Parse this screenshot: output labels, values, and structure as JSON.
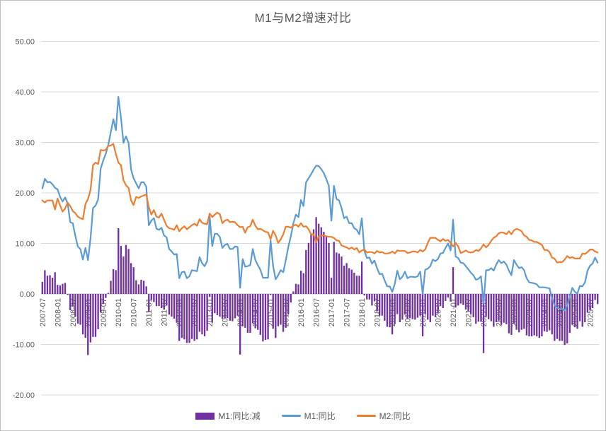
{
  "title": "M1与M2增速对比",
  "colors": {
    "bar_purple": "#7030A0",
    "line_m1_blue": "#5B9BD5",
    "line_m2_orange": "#ED7D31",
    "gridline": "#D9D9D9",
    "zero_axis": "#BFBFBF",
    "text_gray": "#595959",
    "background": "#FFFFFF"
  },
  "legend": [
    {
      "label": "M1:同比:减",
      "color": "#7030A0",
      "type": "bar"
    },
    {
      "label": "M1:同比",
      "color": "#5B9BD5",
      "type": "line"
    },
    {
      "label": "M2:同比",
      "color": "#ED7D31",
      "type": "line"
    }
  ],
  "chart_data": {
    "type": "combo_bar_line",
    "title": "M1与M2增速对比",
    "xlabel": "",
    "ylabel": "",
    "ylim": [
      -20,
      50
    ],
    "grid": "horizontal",
    "legend_position": "bottom-center",
    "x_frequency": "monthly",
    "x_start": "2007-07",
    "x_end": "2025-10",
    "x_tick_every_months": 6,
    "x_tick_labels": [
      "2007-07",
      "2008-01",
      "2008-07",
      "2009-01",
      "2009-07",
      "2010-01",
      "2010-07",
      "2011-01",
      "2011-07",
      "2012-01",
      "2012-07",
      "2013-01",
      "2013-07",
      "2014-01",
      "2014-07",
      "2015-01",
      "2015-07",
      "2016-01",
      "2016-07",
      "2017-01",
      "2017-07",
      "2018-01",
      "2018-07",
      "2019-01",
      "2019-07",
      "2020-01",
      "2020-07",
      "2021-01",
      "2021-07",
      "2022-01",
      "2022-07",
      "2023-01",
      "2023-07",
      "2024-01",
      "2024-07",
      "2025-01",
      "2025-07"
    ],
    "y_tick_labels": [
      "50.00",
      "40.00",
      "30.00",
      "20.00",
      "10.00",
      "0.00",
      "-10.00",
      "-20.00"
    ],
    "series": [
      {
        "name": "M1:同比",
        "type": "line",
        "color": "#5B9BD5",
        "values": [
          20.9,
          22.8,
          22.1,
          22.2,
          21.7,
          21.0,
          20.7,
          19.2,
          18.3,
          19.1,
          17.9,
          14.2,
          14.0,
          11.5,
          9.4,
          8.9,
          6.8,
          9.1,
          6.7,
          10.9,
          17.0,
          17.5,
          18.7,
          24.8,
          26.4,
          27.7,
          29.5,
          32.0,
          34.6,
          32.4,
          39.0,
          35.0,
          29.9,
          31.2,
          29.9,
          24.6,
          22.9,
          21.9,
          20.9,
          22.1,
          22.1,
          21.2,
          13.6,
          14.5,
          15.0,
          12.9,
          12.7,
          13.1,
          11.6,
          11.2,
          8.9,
          8.4,
          7.8,
          7.9,
          3.1,
          4.3,
          4.4,
          3.1,
          3.5,
          4.7,
          4.6,
          4.5,
          7.3,
          6.1,
          5.5,
          6.5,
          15.3,
          9.5,
          11.9,
          11.9,
          11.3,
          9.1,
          9.7,
          9.9,
          8.9,
          8.9,
          9.4,
          9.3,
          1.2,
          6.9,
          5.4,
          5.5,
          5.7,
          8.9,
          6.7,
          5.7,
          4.8,
          3.2,
          3.2,
          3.2,
          10.6,
          5.6,
          2.9,
          3.7,
          4.7,
          4.3,
          6.6,
          9.3,
          11.4,
          14.0,
          15.7,
          15.2,
          18.6,
          17.4,
          22.1,
          22.9,
          23.7,
          24.6,
          25.4,
          25.3,
          24.7,
          23.9,
          22.7,
          21.4,
          14.5,
          21.4,
          18.8,
          18.5,
          17.0,
          15.0,
          15.3,
          14.0,
          14.0,
          13.0,
          12.7,
          11.8,
          15.0,
          8.5,
          7.1,
          7.2,
          6.0,
          6.6,
          5.1,
          3.9,
          4.0,
          2.7,
          1.5,
          1.5,
          0.4,
          2.0,
          4.6,
          2.9,
          3.4,
          4.4,
          3.1,
          3.4,
          3.4,
          3.3,
          3.5,
          4.4,
          0.0,
          4.8,
          5.0,
          5.5,
          6.8,
          6.5,
          6.9,
          8.0,
          8.1,
          9.1,
          10.0,
          8.6,
          14.7,
          7.4,
          7.1,
          6.2,
          6.1,
          5.5,
          4.9,
          4.2,
          3.7,
          2.8,
          3.0,
          3.5,
          -1.9,
          4.7,
          4.7,
          5.1,
          4.6,
          5.8,
          6.7,
          6.1,
          6.4,
          5.8,
          4.6,
          3.7,
          6.7,
          5.8,
          5.1,
          5.3,
          4.7,
          3.1,
          2.3,
          2.2,
          2.1,
          1.9,
          1.3,
          1.3,
          1.3,
          1.2,
          1.1,
          -0.8,
          -2.3,
          -2.7,
          -3.0,
          -3.0,
          -3.3,
          -2.3,
          -0.6,
          1.2,
          0.4,
          0.1,
          1.6,
          1.5,
          2.3,
          4.6,
          5.6,
          6.0,
          7.2,
          6.2
        ]
      },
      {
        "name": "M2:同比",
        "type": "line",
        "color": "#ED7D31",
        "values": [
          18.5,
          18.1,
          18.5,
          18.5,
          18.5,
          16.7,
          18.9,
          17.5,
          16.3,
          16.9,
          18.1,
          17.4,
          16.4,
          16.0,
          15.3,
          15.0,
          14.8,
          17.8,
          18.8,
          20.5,
          25.5,
          26.0,
          25.7,
          28.5,
          28.4,
          28.5,
          29.3,
          29.4,
          29.7,
          27.7,
          26.0,
          25.5,
          22.5,
          21.5,
          21.0,
          18.5,
          17.6,
          19.2,
          19.0,
          19.3,
          19.5,
          19.7,
          17.2,
          15.7,
          16.6,
          15.3,
          15.1,
          15.9,
          14.7,
          13.5,
          13.0,
          12.9,
          12.7,
          13.6,
          12.4,
          13.0,
          13.4,
          12.8,
          13.2,
          13.6,
          13.9,
          13.5,
          14.8,
          14.1,
          13.9,
          13.8,
          15.9,
          15.2,
          15.7,
          16.1,
          15.8,
          14.0,
          14.5,
          14.7,
          14.2,
          14.3,
          14.2,
          13.6,
          13.2,
          13.3,
          12.1,
          13.2,
          13.4,
          14.7,
          13.5,
          12.8,
          12.9,
          12.6,
          12.3,
          12.2,
          10.8,
          12.5,
          11.6,
          10.1,
          10.8,
          11.8,
          13.3,
          13.3,
          13.1,
          13.5,
          13.7,
          13.3,
          14.0,
          13.3,
          13.4,
          12.8,
          11.8,
          11.8,
          10.2,
          11.4,
          11.5,
          11.6,
          11.4,
          11.3,
          11.3,
          11.1,
          10.6,
          10.5,
          9.6,
          9.4,
          9.2,
          8.9,
          9.2,
          8.8,
          9.1,
          8.2,
          8.6,
          8.8,
          8.2,
          8.3,
          8.3,
          8.0,
          8.5,
          8.2,
          8.3,
          8.0,
          8.0,
          8.1,
          8.4,
          8.0,
          8.6,
          8.5,
          8.5,
          8.5,
          8.1,
          8.2,
          8.4,
          8.4,
          8.2,
          8.7,
          8.4,
          8.8,
          10.1,
          11.1,
          11.1,
          11.1,
          10.7,
          10.4,
          10.9,
          10.5,
          10.7,
          10.1,
          9.4,
          10.1,
          9.4,
          8.1,
          8.3,
          8.6,
          8.3,
          8.2,
          8.3,
          8.7,
          8.5,
          9.0,
          9.8,
          9.2,
          9.7,
          10.5,
          11.1,
          11.4,
          12.0,
          12.2,
          12.1,
          11.8,
          12.4,
          11.8,
          12.6,
          12.9,
          12.7,
          12.4,
          11.6,
          11.3,
          10.7,
          10.6,
          10.3,
          10.3,
          10.0,
          9.7,
          8.7,
          8.7,
          8.3,
          7.2,
          7.0,
          6.2,
          6.3,
          6.3,
          6.8,
          7.5,
          7.1,
          7.3,
          7.0,
          7.0,
          7.0,
          8.0,
          7.9,
          8.3,
          8.8,
          8.8,
          8.4,
          8.2
        ]
      },
      {
        "name": "M1:同比:减",
        "type": "bar",
        "color": "#7030A0",
        "values_formula": "M1:同比 − M2:同比 (monthly spread, rendered as bars)"
      }
    ]
  }
}
